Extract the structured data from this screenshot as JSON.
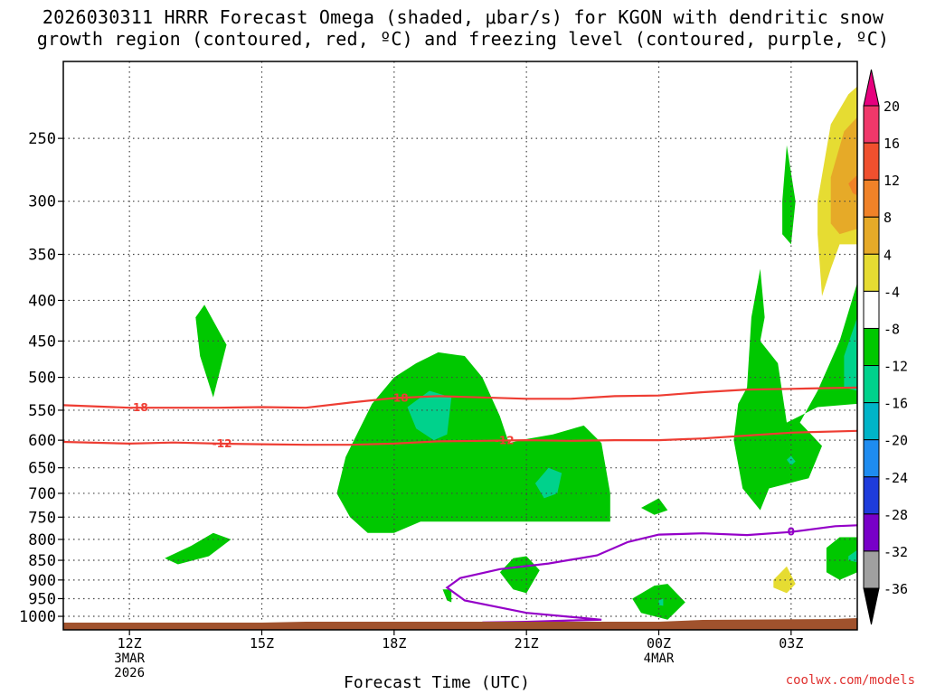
{
  "title_line1": "2026030311 HRRR Forecast Omega (shaded, μbar/s) for KGON with dendritic snow",
  "title_line2": "growth region (contoured, red, ºC) and freezing level (contoured, purple, ºC)",
  "credit": "coolwx.com/models",
  "chart_data": {
    "type": "heatmap",
    "xlabel": "Forecast Time (UTC)",
    "ylabel": "",
    "y_ticks": [
      250,
      300,
      350,
      400,
      450,
      500,
      550,
      600,
      650,
      700,
      750,
      800,
      850,
      900,
      950,
      1000
    ],
    "ylim": [
      1040,
      200
    ],
    "y_scale": "log-pressure",
    "xlim_hours": [
      10.5,
      28.5
    ],
    "x_ticks": [
      {
        "hour": 12,
        "label": "12Z",
        "date1": "3MAR",
        "date2": "2026"
      },
      {
        "hour": 15,
        "label": "15Z",
        "date1": "",
        "date2": ""
      },
      {
        "hour": 18,
        "label": "18Z",
        "date1": "",
        "date2": ""
      },
      {
        "hour": 21,
        "label": "21Z",
        "date1": "",
        "date2": ""
      },
      {
        "hour": 24,
        "label": "00Z",
        "date1": "4MAR",
        "date2": ""
      },
      {
        "hour": 27,
        "label": "03Z",
        "date1": "",
        "date2": ""
      }
    ],
    "grid": true,
    "colorbar": {
      "labels": [
        "20",
        "16",
        "12",
        "8",
        "4",
        "-4",
        "-8",
        "-12",
        "-16",
        "-20",
        "-24",
        "-28",
        "-32",
        "-36"
      ],
      "colors": [
        "#f0386a",
        "#f0502e",
        "#f08228",
        "#e6aa28",
        "#e6dc32",
        "#ffffff",
        "#00c800",
        "#00d28c",
        "#00b4c8",
        "#1e8cf0",
        "#1e3cdc",
        "#7800c8",
        "#a000c8",
        "#a0a0a0"
      ],
      "top_arrow": "#e6007e",
      "bottom_arrow": "#000000"
    },
    "contours": [
      {
        "label": "-18",
        "color": "#ee3d33",
        "points": [
          [
            10.5,
            542
          ],
          [
            12,
            546
          ],
          [
            14,
            546
          ],
          [
            15,
            545
          ],
          [
            16,
            546
          ],
          [
            17,
            538
          ],
          [
            18,
            531
          ],
          [
            19,
            528
          ],
          [
            20,
            530
          ],
          [
            21,
            532
          ],
          [
            22,
            532
          ],
          [
            23,
            528
          ],
          [
            24,
            527
          ],
          [
            25,
            522
          ],
          [
            26,
            518
          ],
          [
            27,
            517
          ],
          [
            28.5,
            515
          ]
        ]
      },
      {
        "label": "-12",
        "color": "#ee3d33",
        "points": [
          [
            10.5,
            603
          ],
          [
            12,
            606
          ],
          [
            13,
            604
          ],
          [
            14,
            606
          ],
          [
            15,
            607
          ],
          [
            16,
            608
          ],
          [
            17,
            608
          ],
          [
            18,
            606
          ],
          [
            19,
            602
          ],
          [
            20,
            601
          ],
          [
            21,
            600
          ],
          [
            22,
            601
          ],
          [
            23,
            600
          ],
          [
            24,
            600
          ],
          [
            25,
            597
          ],
          [
            26,
            592
          ],
          [
            27,
            587
          ],
          [
            28.5,
            584
          ]
        ]
      },
      {
        "label": "0",
        "color": "#9400c8",
        "points": [
          [
            20,
            1018
          ],
          [
            21,
            1016
          ],
          [
            22,
            1012
          ],
          [
            22.7,
            1010
          ],
          [
            21,
            990
          ],
          [
            19.6,
            955
          ],
          [
            19.2,
            920
          ],
          [
            19.5,
            895
          ],
          [
            20.4,
            872
          ],
          [
            21.5,
            858
          ],
          [
            22.6,
            838
          ],
          [
            23.3,
            806
          ],
          [
            24,
            789
          ],
          [
            25,
            786
          ],
          [
            26,
            790
          ],
          [
            27,
            783
          ],
          [
            28,
            770
          ],
          [
            28.5,
            768
          ]
        ]
      }
    ],
    "omega_regions": [
      {
        "value": "-8",
        "color": "#00c800",
        "poly": [
          [
            13.7,
            405
          ],
          [
            14.2,
            455
          ],
          [
            13.9,
            530
          ],
          [
            13.6,
            470
          ],
          [
            13.5,
            420
          ]
        ]
      },
      {
        "value": "-8",
        "color": "#00c800",
        "poly": [
          [
            12.8,
            845
          ],
          [
            13.4,
            815
          ],
          [
            13.9,
            785
          ],
          [
            14.3,
            800
          ],
          [
            13.8,
            840
          ],
          [
            13.1,
            860
          ]
        ]
      },
      {
        "value": "-8",
        "color": "#00c800",
        "poly": [
          [
            16.7,
            700
          ],
          [
            16.9,
            630
          ],
          [
            17.5,
            540
          ],
          [
            18,
            500
          ],
          [
            18.5,
            480
          ],
          [
            19,
            465
          ],
          [
            19.6,
            470
          ],
          [
            20,
            500
          ],
          [
            20.4,
            560
          ],
          [
            20.6,
            605
          ],
          [
            21,
            598
          ],
          [
            21.6,
            590
          ],
          [
            22.3,
            575
          ],
          [
            22.7,
            605
          ],
          [
            22.9,
            700
          ],
          [
            22.9,
            760
          ],
          [
            20,
            760
          ],
          [
            18.6,
            760
          ],
          [
            18,
            785
          ],
          [
            17.4,
            785
          ],
          [
            17,
            750
          ]
        ]
      },
      {
        "value": "-8",
        "color": "#00c800",
        "poly": [
          [
            20.4,
            880
          ],
          [
            20.7,
            845
          ],
          [
            21,
            840
          ],
          [
            21.3,
            875
          ],
          [
            21,
            935
          ],
          [
            20.7,
            925
          ]
        ]
      },
      {
        "value": "-8",
        "color": "#00c800",
        "poly": [
          [
            23.4,
            950
          ],
          [
            23.9,
            915
          ],
          [
            24.2,
            910
          ],
          [
            24.6,
            960
          ],
          [
            24.2,
            1010
          ],
          [
            23.6,
            990
          ]
        ]
      },
      {
        "value": "-8",
        "color": "#00c800",
        "poly": [
          [
            23.6,
            730
          ],
          [
            24,
            710
          ],
          [
            24.2,
            735
          ],
          [
            23.9,
            745
          ]
        ]
      },
      {
        "value": "-8",
        "color": "#00c800",
        "poly": [
          [
            26,
            515
          ],
          [
            26.1,
            420
          ],
          [
            26.3,
            365
          ],
          [
            26.4,
            420
          ],
          [
            26.3,
            450
          ],
          [
            26.7,
            480
          ],
          [
            26.9,
            570
          ],
          [
            27.6,
            545
          ],
          [
            28.5,
            540
          ],
          [
            28.5,
            380
          ],
          [
            28.1,
            450
          ],
          [
            27.6,
            520
          ],
          [
            27.2,
            570
          ],
          [
            27.7,
            610
          ],
          [
            27.4,
            670
          ],
          [
            26.5,
            690
          ],
          [
            26.3,
            735
          ],
          [
            25.9,
            690
          ],
          [
            25.7,
            600
          ],
          [
            25.8,
            540
          ]
        ]
      },
      {
        "value": "-8",
        "color": "#00c800",
        "poly": [
          [
            26.8,
            300
          ],
          [
            26.9,
            255
          ],
          [
            27.1,
            300
          ],
          [
            27,
            340
          ],
          [
            26.8,
            330
          ]
        ]
      },
      {
        "value": "-8",
        "color": "#00c800",
        "poly": [
          [
            27.8,
            820
          ],
          [
            28.1,
            795
          ],
          [
            28.5,
            795
          ],
          [
            28.5,
            880
          ],
          [
            28.1,
            900
          ],
          [
            27.8,
            880
          ]
        ]
      },
      {
        "value": "-8",
        "color": "#00c800",
        "poly": [
          [
            19.1,
            925
          ],
          [
            19.3,
            925
          ],
          [
            19.3,
            960
          ],
          [
            19.2,
            955
          ]
        ]
      },
      {
        "value": "-12",
        "color": "#00d28c",
        "poly": [
          [
            18.3,
            545
          ],
          [
            18.8,
            520
          ],
          [
            19.3,
            530
          ],
          [
            19.2,
            590
          ],
          [
            18.9,
            600
          ],
          [
            18.5,
            580
          ]
        ]
      },
      {
        "value": "-12",
        "color": "#00d28c",
        "poly": [
          [
            21.2,
            680
          ],
          [
            21.5,
            650
          ],
          [
            21.8,
            660
          ],
          [
            21.7,
            700
          ],
          [
            21.4,
            710
          ]
        ]
      },
      {
        "value": "-12",
        "color": "#00d28c",
        "poly": [
          [
            28.2,
            470
          ],
          [
            28.5,
            420
          ],
          [
            28.5,
            520
          ],
          [
            28.2,
            515
          ]
        ]
      },
      {
        "value": "-12",
        "color": "#00d28c",
        "poly": [
          [
            26.9,
            635
          ],
          [
            27,
            628
          ],
          [
            27.1,
            638
          ],
          [
            27,
            646
          ]
        ]
      },
      {
        "value": "-12",
        "color": "#00d28c",
        "poly": [
          [
            24,
            955
          ],
          [
            24.1,
            950
          ],
          [
            24.1,
            970
          ],
          [
            24,
            968
          ]
        ]
      },
      {
        "value": "-12",
        "color": "#00d28c",
        "poly": [
          [
            28.3,
            840
          ],
          [
            28.5,
            825
          ],
          [
            28.5,
            855
          ],
          [
            28.3,
            850
          ]
        ]
      },
      {
        "value": "4",
        "color": "#e6dc32",
        "poly": [
          [
            27.6,
            300
          ],
          [
            27.9,
            240
          ],
          [
            28.3,
            220
          ],
          [
            28.5,
            215
          ],
          [
            28.5,
            340
          ],
          [
            28.1,
            340
          ],
          [
            27.9,
            365
          ],
          [
            27.7,
            395
          ],
          [
            27.6,
            330
          ]
        ]
      },
      {
        "value": "4",
        "color": "#e6dc32",
        "poly": [
          [
            26.6,
            900
          ],
          [
            26.9,
            865
          ],
          [
            27.1,
            910
          ],
          [
            26.9,
            935
          ],
          [
            26.6,
            920
          ]
        ]
      },
      {
        "value": "8",
        "color": "#e6aa28",
        "poly": [
          [
            27.9,
            280
          ],
          [
            28.2,
            245
          ],
          [
            28.5,
            235
          ],
          [
            28.5,
            325
          ],
          [
            28.1,
            330
          ],
          [
            27.9,
            320
          ]
        ]
      },
      {
        "value": "12",
        "color": "#f08228",
        "poly": [
          [
            28.3,
            285
          ],
          [
            28.5,
            278
          ],
          [
            28.5,
            295
          ],
          [
            28.4,
            293
          ]
        ]
      }
    ],
    "terrain_color": "#a0522d"
  }
}
